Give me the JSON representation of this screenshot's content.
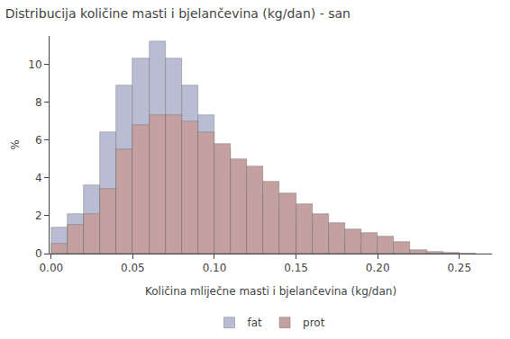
{
  "chart_data": {
    "type": "histogram",
    "title": "Distribucija količine masti i bjelančevina (kg/dan) - san",
    "x_label": "Količina mliječne masti i bjelančevina (kg/dan)",
    "y_label": "%",
    "series": [
      {
        "name": "fat",
        "color": "#b8bdd4",
        "bins": [
          0.0,
          0.01,
          0.02,
          0.03,
          0.04,
          0.05,
          0.06,
          0.07,
          0.08,
          0.09,
          0.1,
          0.11,
          0.12,
          0.13,
          0.14,
          0.15,
          0.16,
          0.17,
          0.18,
          0.19,
          0.2,
          0.21,
          0.22,
          0.23,
          0.24,
          0.25,
          0.26,
          0.27
        ],
        "values": [
          1.4,
          2.1,
          3.6,
          6.4,
          8.9,
          10.3,
          11.2,
          10.3,
          8.9,
          7.3,
          5.5,
          4.3,
          3.3,
          2.2,
          2.2,
          1.6,
          1.1,
          0.7,
          0.5,
          0.3,
          0.2,
          0.15,
          0.1,
          0.05,
          0.02,
          0.01
        ]
      },
      {
        "name": "prot",
        "color": "#c4a0a0",
        "bins": [
          0.0,
          0.01,
          0.02,
          0.03,
          0.04,
          0.05,
          0.06,
          0.07,
          0.08,
          0.09,
          0.1,
          0.11,
          0.12,
          0.13,
          0.14,
          0.15,
          0.16,
          0.17,
          0.18,
          0.19,
          0.2,
          0.21,
          0.22,
          0.23,
          0.24,
          0.25,
          0.26
        ],
        "values": [
          0.5,
          1.5,
          2.1,
          3.4,
          5.5,
          6.8,
          7.3,
          7.3,
          7.0,
          6.4,
          5.8,
          5.0,
          4.6,
          3.8,
          3.2,
          2.6,
          2.1,
          1.6,
          1.3,
          1.1,
          0.9,
          0.6,
          0.2,
          0.1,
          0.05
        ]
      }
    ],
    "xlim": [
      -0.001,
      0.27
    ],
    "ylim": [
      0,
      11.5
    ],
    "xticks": [
      {
        "value": 0.0,
        "label": "0.00"
      },
      {
        "value": 0.05,
        "label": "0.05"
      },
      {
        "value": 0.1,
        "label": "0.10"
      },
      {
        "value": 0.15,
        "label": "0.15"
      },
      {
        "value": 0.2,
        "label": "0.20"
      },
      {
        "value": 0.25,
        "label": "0.25"
      }
    ],
    "yticks": [
      0,
      2,
      4,
      6,
      8,
      10
    ],
    "grid": false,
    "legend": "bottom"
  }
}
